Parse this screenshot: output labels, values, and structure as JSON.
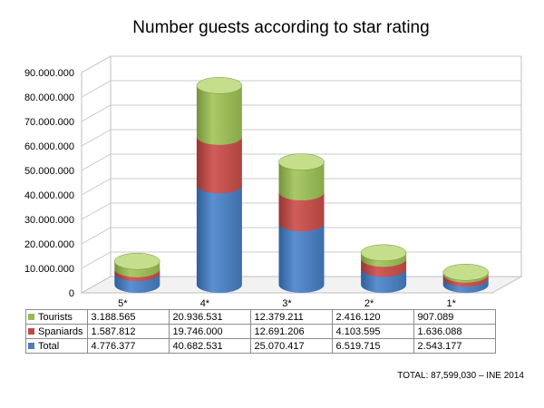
{
  "chart_data": {
    "type": "bar",
    "title": "Number guests according to star rating",
    "categories": [
      "5*",
      "4*",
      "3*",
      "2*",
      "1*"
    ],
    "series": [
      {
        "name": "Total",
        "color": "#4a7ebb",
        "values": [
          4776377,
          40682531,
          25070417,
          6519715,
          2543177
        ],
        "labels": [
          "4.776.377",
          "40.682.531",
          "25.070.417",
          "6.519.715",
          "2.543.177"
        ]
      },
      {
        "name": "Spaniards",
        "color": "#be4b48",
        "values": [
          1587812,
          19746000,
          12691206,
          4103595,
          1636088
        ],
        "labels": [
          "1.587.812",
          "19.746.000",
          "12.691.206",
          "4.103.595",
          "1.636.088"
        ]
      },
      {
        "name": "Tourists",
        "color": "#98b954",
        "values": [
          3188565,
          20936531,
          12379211,
          2416120,
          907089
        ],
        "labels": [
          "3.188.565",
          "20.936.531",
          "12.379.211",
          "2.416.120",
          "907.089"
        ]
      }
    ],
    "table_row_order": [
      "Tourists",
      "Spaniards",
      "Total"
    ],
    "ylim": [
      0,
      90000000
    ],
    "yticks": [
      0,
      10000000,
      20000000,
      30000000,
      40000000,
      50000000,
      60000000,
      70000000,
      80000000,
      90000000
    ],
    "ytick_labels": [
      "0",
      "10.000.000",
      "20.000.000",
      "30.000.000",
      "40.000.000",
      "50.000.000",
      "60.000.000",
      "70.000.000",
      "80.000.000",
      "90.000.000"
    ],
    "grid": true,
    "legend": "data table below chart",
    "style": "3D stacked cylinder",
    "note": "TOTAL: 87,599,030 – INE 2014"
  }
}
